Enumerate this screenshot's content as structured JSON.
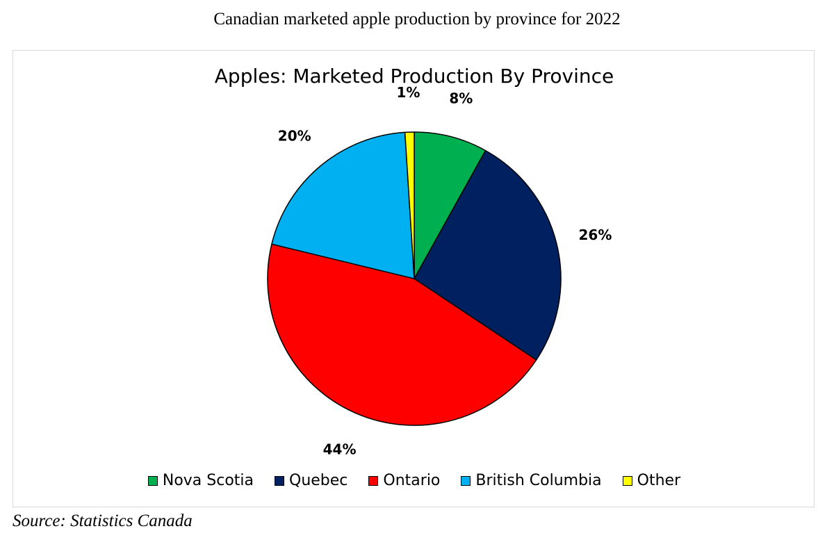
{
  "caption": "Canadian marketed apple production by province for 2022",
  "source": "Source: Statistics Canada",
  "chart_data": {
    "type": "pie",
    "title": "Apples: Marketed Production By Province",
    "categories": [
      "Nova Scotia",
      "Quebec",
      "Ontario",
      "British Columbia",
      "Other"
    ],
    "values": [
      8,
      26,
      44,
      20,
      1
    ],
    "labels": [
      "8%",
      "26%",
      "44%",
      "20%",
      "1%"
    ],
    "colors": [
      "#00b050",
      "#002060",
      "#ff0000",
      "#00b0f0",
      "#ffff00"
    ],
    "unit": "%",
    "start_angle_deg": 0,
    "direction": "clockwise",
    "legend_position": "bottom"
  }
}
